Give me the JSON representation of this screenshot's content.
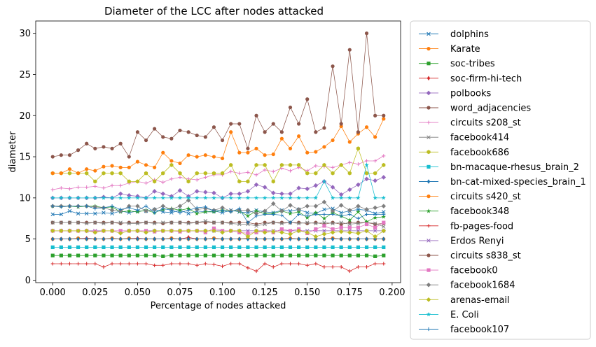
{
  "chart_data": {
    "type": "line",
    "title": "Diameter of the LCC after nodes attacked",
    "xlabel": "Percentage of nodes attacked",
    "ylabel": "diameter",
    "xlim": [
      -0.01,
      0.205
    ],
    "ylim": [
      -0.3,
      31.5
    ],
    "xticks": [
      "0.000",
      "0.025",
      "0.050",
      "0.075",
      "0.100",
      "0.125",
      "0.150",
      "0.175",
      "0.200"
    ],
    "xtick_values": [
      0,
      0.025,
      0.05,
      0.075,
      0.1,
      0.125,
      0.15,
      0.175,
      0.2
    ],
    "yticks": [
      "0",
      "5",
      "10",
      "15",
      "20",
      "25",
      "30"
    ],
    "ytick_values": [
      0,
      5,
      10,
      15,
      20,
      25,
      30
    ],
    "grid": false,
    "legend_position": "outside-right",
    "x": [
      0,
      0.005,
      0.01,
      0.015,
      0.02,
      0.025,
      0.03,
      0.035,
      0.04,
      0.045,
      0.05,
      0.055,
      0.06,
      0.065,
      0.07,
      0.075,
      0.08,
      0.085,
      0.09,
      0.095,
      0.1,
      0.105,
      0.11,
      0.115,
      0.12,
      0.125,
      0.13,
      0.135,
      0.14,
      0.145,
      0.15,
      0.155,
      0.16,
      0.165,
      0.17,
      0.175,
      0.18,
      0.185,
      0.19,
      0.195
    ],
    "series": [
      {
        "name": "dolphins",
        "color": "#1f77b4",
        "marker": "x",
        "values": [
          8,
          8,
          8.4,
          8.1,
          8.1,
          8.1,
          8.2,
          8.1,
          8.4,
          8.2,
          8.4,
          8.4,
          8.6,
          8.3,
          8.2,
          8.5,
          8.1,
          8.4,
          8.3,
          8.4,
          8.2,
          8.5,
          8.3,
          8.2,
          8.5,
          8.3,
          8.2,
          8.5,
          8.4,
          8.6,
          8.2,
          8.1,
          8.6,
          8.7,
          8.2,
          8.4,
          8.6,
          8.5,
          8.1,
          8.3
        ]
      },
      {
        "name": "Karate",
        "color": "#ff7f0e",
        "marker": "o",
        "values": [
          5,
          5,
          5,
          5.1,
          5,
          5,
          5,
          5.1,
          5,
          5.1,
          5,
          5,
          5,
          5,
          5.1,
          5,
          5,
          5,
          5,
          5.1,
          5,
          5,
          5,
          5.1,
          5,
          5,
          5,
          5,
          5.1,
          5,
          5,
          5,
          5,
          5.1,
          5,
          5,
          5,
          5,
          5,
          5
        ]
      },
      {
        "name": "soc-tribes",
        "color": "#2ca02c",
        "marker": "s",
        "values": [
          3,
          3,
          3,
          3,
          3,
          3,
          3,
          3,
          3,
          3,
          3,
          3,
          3,
          2.9,
          3,
          3,
          3,
          3,
          3,
          3,
          3,
          3,
          3,
          3,
          3,
          3,
          3,
          3,
          3,
          3,
          3,
          3,
          3,
          3,
          3,
          3,
          3,
          3,
          2.9,
          3
        ]
      },
      {
        "name": "soc-firm-hi-tech",
        "color": "#d62728",
        "marker": "d",
        "values": [
          5,
          5,
          5,
          5,
          5.1,
          5,
          5,
          5,
          5,
          5,
          5.1,
          5,
          5,
          5,
          5,
          5,
          5.2,
          5,
          5,
          5,
          5,
          5,
          5,
          5,
          5,
          5,
          5,
          5,
          5,
          5,
          5,
          5,
          5,
          5,
          5,
          5,
          5,
          5,
          5,
          5
        ]
      },
      {
        "name": "polbooks",
        "color": "#9467bd",
        "marker": "D",
        "values": [
          10,
          10,
          10,
          10,
          10,
          10,
          10.1,
          10,
          10.5,
          10.3,
          10.2,
          10,
          10.8,
          10.5,
          10.2,
          10.9,
          10.2,
          10.8,
          10.7,
          10.6,
          10,
          10.5,
          10.5,
          10.8,
          11.6,
          11.3,
          10.6,
          10.5,
          10.5,
          11.2,
          11.1,
          11.5,
          12,
          11.3,
          10.4,
          11,
          11.6,
          12.3,
          12.1,
          12.5
        ]
      },
      {
        "name": "word_adjacencies",
        "color": "#8c564b",
        "marker": "o",
        "values": [
          7,
          7,
          7,
          7,
          7,
          7,
          7,
          7,
          6.9,
          7,
          7,
          7,
          7,
          6.9,
          7,
          7,
          7,
          7,
          7,
          7,
          7,
          7,
          7,
          7,
          6.8,
          7,
          7,
          7,
          7,
          7,
          6.9,
          7,
          6.8,
          7,
          6.8,
          7,
          7,
          7,
          6.8,
          6.9
        ]
      },
      {
        "name": "circuits s208_st",
        "color": "#e377c2",
        "marker": "+",
        "values": [
          11,
          11.2,
          11.1,
          11.3,
          11.3,
          11.4,
          11.2,
          11.5,
          11.5,
          11.8,
          12,
          11.8,
          12.2,
          11.9,
          12.3,
          12.5,
          12.3,
          12.2,
          12.5,
          12.8,
          12.8,
          13.2,
          13,
          13.1,
          12.8,
          13.4,
          13.2,
          13.6,
          13.3,
          13.7,
          13.3,
          13.9,
          13.8,
          13.7,
          14,
          14.3,
          14.1,
          14.5,
          14.5,
          15.1
        ]
      },
      {
        "name": "facebook414",
        "color": "#7f7f7f",
        "marker": "x",
        "values": [
          7,
          7,
          7,
          7,
          6.9,
          7,
          6.9,
          7,
          7,
          6.9,
          6.9,
          7,
          6.9,
          7,
          7,
          7,
          6.9,
          7,
          7.2,
          7,
          7,
          6.9,
          6.8,
          6.8,
          6.6,
          6.8,
          7,
          6.9,
          7,
          6.9,
          7,
          6.9,
          7,
          6.9,
          7,
          6.8,
          6.9,
          7,
          6.9,
          6.5
        ]
      },
      {
        "name": "facebook686",
        "color": "#bcbd22",
        "marker": "h",
        "values": [
          13,
          13,
          13,
          13,
          13,
          12,
          13,
          13,
          13,
          12,
          12,
          13,
          12,
          13,
          14,
          13,
          12,
          13,
          13,
          13,
          13,
          14,
          12,
          12,
          14,
          14,
          12,
          14,
          14,
          14,
          13,
          13,
          14,
          13,
          14,
          13,
          16,
          13,
          13,
          14
        ]
      },
      {
        "name": "bn-macaque-rhesus_brain_2",
        "color": "#17becf",
        "marker": "s",
        "values": [
          4,
          4,
          4,
          4,
          4,
          4,
          4,
          4,
          4,
          4,
          4,
          4,
          4,
          4,
          4,
          4,
          4,
          4,
          4,
          4,
          4,
          4,
          4,
          4,
          4,
          4,
          4,
          4,
          4,
          4,
          4,
          4,
          4,
          4,
          4,
          4,
          4,
          4,
          4,
          4
        ]
      },
      {
        "name": "bn-cat-mixed-species_brain_1",
        "color": "#1f77b4",
        "marker": "d",
        "values": [
          5,
          5,
          5,
          5,
          5,
          5,
          5,
          5,
          5,
          5,
          5,
          5,
          5,
          5,
          5,
          5,
          5,
          5,
          5,
          5,
          5,
          5,
          5,
          5,
          5,
          5,
          5,
          5,
          5,
          5,
          5,
          5,
          5,
          5,
          5,
          5,
          5,
          5,
          5,
          5
        ]
      },
      {
        "name": "circuits s420_st",
        "color": "#ff7f0e",
        "marker": "o",
        "values": [
          13,
          13,
          13.5,
          13,
          13.5,
          13.3,
          13.8,
          13.9,
          13.7,
          13.7,
          14.4,
          14,
          13.7,
          15.5,
          14.5,
          14.2,
          15.2,
          15,
          15.2,
          15,
          14.8,
          18,
          15.5,
          15.5,
          16,
          15.2,
          15.3,
          17.2,
          16,
          17.5,
          15.5,
          15.6,
          16.2,
          17,
          18.7,
          16.8,
          17.8,
          18.6,
          17.4,
          19.6
        ]
      },
      {
        "name": "facebook348",
        "color": "#2ca02c",
        "marker": "*",
        "values": [
          9,
          9,
          9,
          8.9,
          9,
          9,
          8.8,
          8.9,
          8.3,
          8.4,
          8.3,
          8.5,
          8.2,
          8.6,
          8.7,
          8.5,
          8.7,
          8.1,
          8.3,
          8.3,
          8.5,
          8.4,
          8.4,
          7.8,
          8.4,
          8.1,
          8.1,
          8.4,
          8.1,
          8.3,
          7.6,
          8.2,
          7.5,
          8.2,
          7.8,
          7.3,
          8.3,
          7.1,
          7.6,
          7.7
        ]
      },
      {
        "name": "fb-pages-food",
        "color": "#d62728",
        "marker": "+",
        "values": [
          2,
          2,
          2,
          2,
          2,
          2,
          1.6,
          2,
          2,
          2,
          2,
          2,
          1.8,
          1.8,
          2,
          2,
          2,
          1.8,
          2,
          1.9,
          1.7,
          2,
          2,
          1.5,
          1.1,
          2,
          1.6,
          2,
          2,
          2,
          1.8,
          2,
          1.6,
          1.6,
          1.6,
          1.1,
          1.6,
          1.6,
          2,
          2
        ]
      },
      {
        "name": "Erdos Renyi",
        "color": "#9467bd",
        "marker": "x",
        "values": [
          6,
          6,
          6,
          6,
          6,
          6,
          6,
          6,
          6,
          6,
          6,
          6,
          6,
          6,
          6,
          6,
          6,
          6,
          6,
          6,
          6,
          6,
          6,
          6,
          6,
          6,
          6,
          6,
          6,
          6,
          6,
          6,
          6,
          6,
          6,
          6,
          6,
          6,
          6,
          6
        ]
      },
      {
        "name": "circuits s838_st",
        "color": "#8c564b",
        "marker": "o",
        "values": [
          15,
          15.2,
          15.2,
          15.8,
          16.6,
          16,
          16.2,
          16,
          16.6,
          15,
          18,
          17,
          18.4,
          17.4,
          17.2,
          18.2,
          18,
          17.6,
          17.4,
          18.6,
          17,
          19,
          19,
          16,
          20,
          18,
          19,
          18,
          21,
          19,
          22,
          18,
          18.5,
          26,
          19,
          28,
          18,
          30,
          20,
          20
        ]
      },
      {
        "name": "facebook0",
        "color": "#e377c2",
        "marker": "s",
        "values": [
          6,
          6,
          6,
          6,
          6,
          5.9,
          6,
          6,
          6,
          6,
          6,
          6,
          5.9,
          6,
          6,
          5.9,
          6,
          6,
          5.8,
          6.3,
          6,
          6,
          5.8,
          5.7,
          5.8,
          6,
          5.8,
          6.2,
          6,
          6.2,
          5.7,
          6.2,
          6.6,
          6.2,
          6.4,
          6.4,
          6.4,
          6.8,
          6.4,
          7
        ]
      },
      {
        "name": "facebook1684",
        "color": "#7f7f7f",
        "marker": "D",
        "values": [
          9,
          9,
          9,
          9,
          9,
          8.9,
          8.8,
          8.5,
          8.4,
          9,
          9,
          8.4,
          8.6,
          9,
          8.6,
          9,
          9.7,
          8.6,
          8.7,
          8.5,
          8.8,
          8.4,
          8.5,
          8.5,
          8.1,
          8.4,
          9.3,
          8.4,
          9.1,
          8.6,
          9,
          9,
          9.5,
          8.4,
          9.1,
          8.5,
          9,
          8.6,
          8.8,
          9
        ]
      },
      {
        "name": "arenas-email",
        "color": "#bcbd22",
        "marker": "D",
        "values": [
          6,
          6,
          6,
          6,
          6,
          5.8,
          6,
          6,
          5.7,
          6,
          6,
          5.8,
          6,
          6,
          6,
          6,
          6,
          6,
          6,
          6,
          5.8,
          6,
          6,
          5.3,
          6,
          5.8,
          5.9,
          5.8,
          5.6,
          6,
          5.8,
          5.3,
          5.6,
          5.8,
          5.9,
          5.8,
          5.7,
          6,
          5.3,
          6
        ]
      },
      {
        "name": "E. Coli",
        "color": "#17becf",
        "marker": "*",
        "values": [
          10,
          10,
          10,
          10,
          10,
          10,
          10,
          10,
          10,
          10,
          10,
          10,
          10,
          10,
          10,
          10,
          10,
          10,
          10,
          10,
          10,
          10,
          10,
          10,
          10,
          10,
          10,
          10,
          10,
          10,
          10,
          10,
          12,
          10,
          10,
          10,
          10,
          14,
          10,
          10
        ]
      },
      {
        "name": "facebook107",
        "color": "#1f77b4",
        "marker": "+",
        "values": [
          9,
          8.9,
          9,
          9,
          9,
          8.7,
          8.8,
          9,
          8.6,
          8.8,
          8.5,
          9,
          8.2,
          8.7,
          8.5,
          8.2,
          8.5,
          8.8,
          8.9,
          8.4,
          8.5,
          8.3,
          8.7,
          7,
          7.8,
          8,
          8,
          7.9,
          7,
          8,
          7.8,
          8,
          8,
          8,
          7.8,
          8,
          7.5,
          8,
          8,
          8
        ]
      }
    ]
  }
}
